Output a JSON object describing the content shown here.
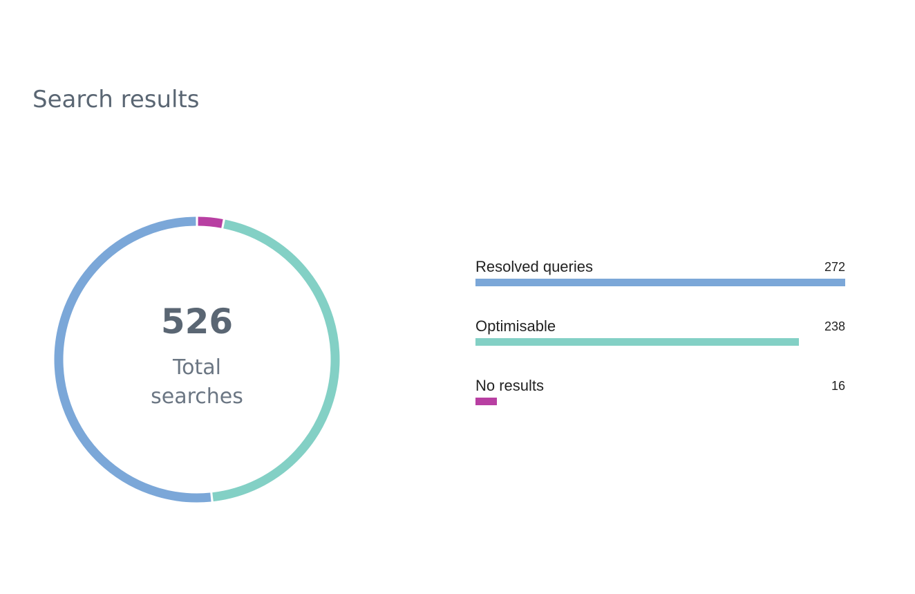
{
  "title": "Search results",
  "chart_data": {
    "type": "pie",
    "total": 526,
    "total_label": "Total\nsearches",
    "categories": [
      "Resolved queries",
      "Optimisable",
      "No results"
    ],
    "values": [
      272,
      238,
      16
    ],
    "colors": [
      "#7ba7d8",
      "#83d0c5",
      "#b83fa2"
    ],
    "bar_scale_max": 272
  }
}
